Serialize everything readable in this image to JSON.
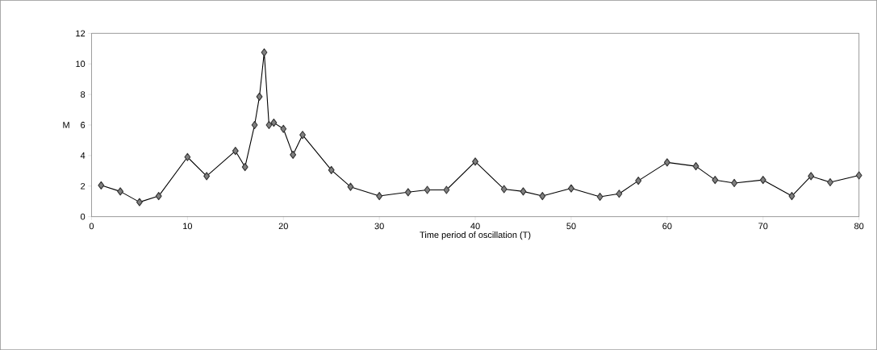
{
  "chart_data": {
    "type": "line",
    "xlabel": "Time period of oscillation (T)",
    "ylabel": "M",
    "x": [
      1,
      3,
      5,
      7,
      10,
      12,
      15,
      16,
      17,
      17.5,
      18,
      18.5,
      19,
      20,
      21,
      22,
      25,
      27,
      30,
      33,
      35,
      37,
      40,
      43,
      45,
      47,
      50,
      53,
      55,
      57,
      60,
      63,
      65,
      67,
      70,
      73,
      75,
      77,
      80
    ],
    "series": [
      {
        "color": "#808080",
        "values": [
          2.05,
          1.65,
          0.95,
          1.35,
          3.9,
          2.65,
          4.3,
          3.25,
          6.0,
          7.85,
          10.75,
          6.0,
          6.15,
          5.75,
          4.05,
          5.35,
          3.05,
          1.95,
          1.35,
          1.6,
          1.75,
          1.75,
          3.6,
          1.8,
          1.65,
          1.35,
          1.85,
          1.3,
          1.5,
          2.35,
          3.55,
          3.3,
          2.4,
          2.2,
          2.4,
          1.35,
          2.65,
          2.25,
          2.7
        ]
      }
    ],
    "xlim": [
      0,
      80
    ],
    "ylim": [
      0,
      12
    ],
    "xticks": [
      0,
      10,
      20,
      30,
      40,
      50,
      60,
      70,
      80
    ],
    "yticks": [
      0,
      2,
      4,
      6,
      8,
      10,
      12
    ],
    "grid": false,
    "marker": "diamond",
    "line_style": "solid"
  }
}
